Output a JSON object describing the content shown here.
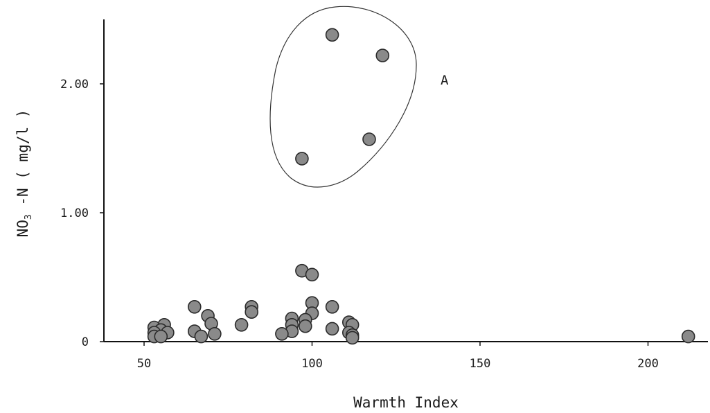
{
  "chart_data": {
    "type": "scatter",
    "title": "",
    "xlabel": "Warmth Index",
    "ylabel": {
      "main": "NO",
      "subscript": "3",
      "rest": " -N  ( mg/l )"
    },
    "xlim": [
      40,
      220
    ],
    "ylim": [
      0,
      2.5
    ],
    "x_ticks": [
      {
        "value": 50,
        "label": "50"
      },
      {
        "value": 100,
        "label": "100"
      },
      {
        "value": 150,
        "label": "150"
      },
      {
        "value": 200,
        "label": "200"
      }
    ],
    "y_ticks": [
      {
        "value": 0,
        "label": "0"
      },
      {
        "value": 1.0,
        "label": "1.00"
      },
      {
        "value": 2.0,
        "label": "2.00"
      }
    ],
    "grid": false,
    "legend": "none",
    "marker_color": "#8a8a8a",
    "marker_edge_color": "#2a2a2a",
    "annotations": [
      {
        "text": "A",
        "x": 141,
        "y": 2.03,
        "encloses": "upper cluster of points"
      }
    ],
    "points": [
      {
        "x": 106,
        "y": 2.38
      },
      {
        "x": 121,
        "y": 2.22
      },
      {
        "x": 117,
        "y": 1.57
      },
      {
        "x": 97,
        "y": 1.42
      },
      {
        "x": 97,
        "y": 0.55
      },
      {
        "x": 100,
        "y": 0.52
      },
      {
        "x": 100,
        "y": 0.3
      },
      {
        "x": 106,
        "y": 0.27
      },
      {
        "x": 65,
        "y": 0.27
      },
      {
        "x": 82,
        "y": 0.27
      },
      {
        "x": 82,
        "y": 0.23
      },
      {
        "x": 100,
        "y": 0.22
      },
      {
        "x": 69,
        "y": 0.2
      },
      {
        "x": 94,
        "y": 0.18
      },
      {
        "x": 98,
        "y": 0.17
      },
      {
        "x": 111,
        "y": 0.15
      },
      {
        "x": 70,
        "y": 0.14
      },
      {
        "x": 56,
        "y": 0.13
      },
      {
        "x": 79,
        "y": 0.13
      },
      {
        "x": 94,
        "y": 0.13
      },
      {
        "x": 112,
        "y": 0.13
      },
      {
        "x": 98,
        "y": 0.12
      },
      {
        "x": 53,
        "y": 0.11
      },
      {
        "x": 106,
        "y": 0.1
      },
      {
        "x": 55,
        "y": 0.09
      },
      {
        "x": 65,
        "y": 0.08
      },
      {
        "x": 94,
        "y": 0.08
      },
      {
        "x": 111,
        "y": 0.07
      },
      {
        "x": 53,
        "y": 0.07
      },
      {
        "x": 57,
        "y": 0.07
      },
      {
        "x": 71,
        "y": 0.06
      },
      {
        "x": 91,
        "y": 0.06
      },
      {
        "x": 112,
        "y": 0.05
      },
      {
        "x": 67,
        "y": 0.04
      },
      {
        "x": 53,
        "y": 0.04
      },
      {
        "x": 55,
        "y": 0.04
      },
      {
        "x": 112,
        "y": 0.03
      },
      {
        "x": 212,
        "y": 0.04
      }
    ]
  }
}
